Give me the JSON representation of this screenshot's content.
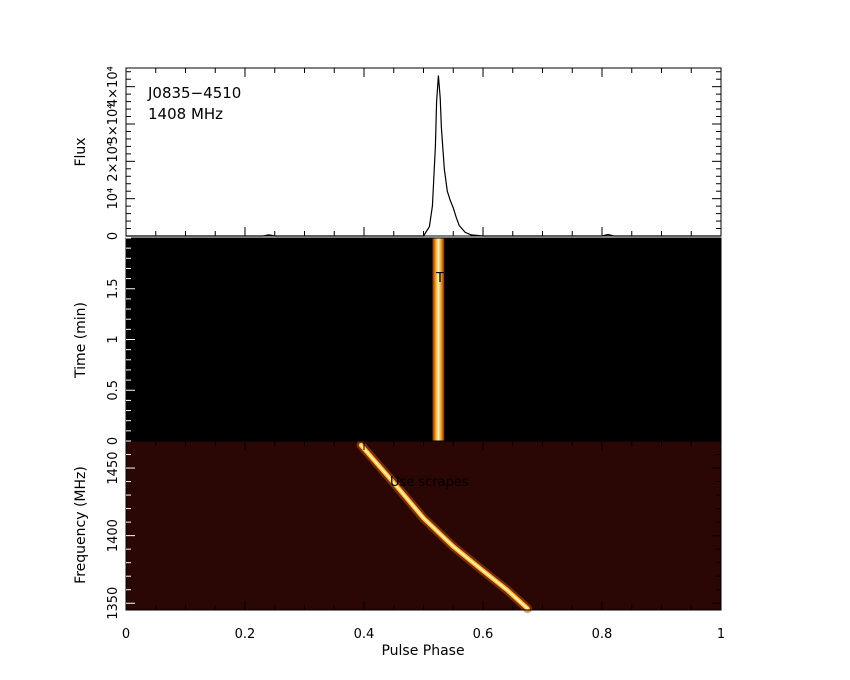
{
  "chart_data": [
    {
      "type": "line",
      "panel": "profile",
      "ylabel": "Flux",
      "annotations": [
        "J0835−4510",
        "1408 MHz"
      ],
      "xlim": [
        0,
        1
      ],
      "ylim": [
        0,
        45000
      ],
      "y_tick_labels": [
        "0",
        "10⁴",
        "2×10⁴",
        "3×10⁴",
        "4×10⁴"
      ],
      "y_ticks": [
        0,
        10000,
        20000,
        30000,
        40000
      ],
      "peak": {
        "x": 0.525,
        "y": 43000
      },
      "x": [
        0.0,
        0.23,
        0.24,
        0.25,
        0.5,
        0.51,
        0.515,
        0.52,
        0.522,
        0.525,
        0.528,
        0.53,
        0.535,
        0.54,
        0.545,
        0.55,
        0.555,
        0.56,
        0.57,
        0.58,
        0.6,
        0.8,
        0.81,
        0.82,
        1.0
      ],
      "y": [
        0,
        0,
        300,
        0,
        0,
        2500,
        8000,
        24000,
        36000,
        43000,
        37000,
        29000,
        18000,
        12000,
        9500,
        7500,
        5000,
        2800,
        1000,
        300,
        0,
        0,
        400,
        0,
        0
      ]
    },
    {
      "type": "heatmap",
      "panel": "time_vs_phase",
      "ylabel": "Time (min)",
      "xlim": [
        0,
        1
      ],
      "ylim": [
        0,
        2
      ],
      "y_tick_labels": [
        "0",
        "0.5",
        "1",
        "1.5"
      ],
      "y_ticks": [
        0,
        0.5,
        1,
        1.5
      ],
      "overlay_text": "Tho",
      "pulse_phase_center": 0.525,
      "pulse_phase_width": 0.02
    },
    {
      "type": "heatmap",
      "panel": "frequency_vs_phase",
      "ylabel": "Frequency (MHz)",
      "xlabel": "Pulse Phase",
      "xlim": [
        0,
        1
      ],
      "ylim": [
        1345,
        1470
      ],
      "y_tick_labels": [
        "1350",
        "1400",
        "1450"
      ],
      "y_ticks": [
        1350,
        1400,
        1450
      ],
      "x_tick_labels": [
        "0",
        "0.2",
        "0.4",
        "0.6",
        "0.8",
        "1"
      ],
      "x_ticks": [
        0,
        0.2,
        0.4,
        0.6,
        0.8,
        1
      ],
      "overlay_text": "Use scrapes",
      "dispersion_track": {
        "phase": [
          0.395,
          0.45,
          0.5,
          0.55,
          0.6,
          0.64,
          0.675
        ],
        "freq": [
          1467,
          1439,
          1413,
          1392,
          1374,
          1360,
          1346
        ]
      }
    }
  ],
  "colors": {
    "background": "#000000",
    "pulse": "#ffd24a",
    "pulse_core": "#fff4b0",
    "freq_bg": "#2a0604",
    "line": "#000000"
  }
}
